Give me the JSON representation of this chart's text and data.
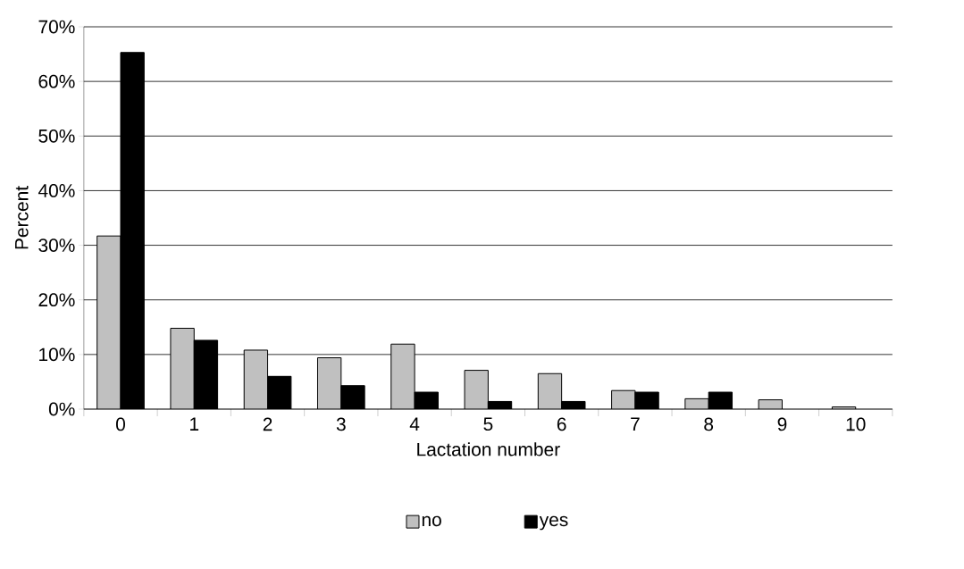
{
  "chart_data": {
    "type": "bar",
    "xlabel": "Lactation number",
    "ylabel": "Percent",
    "categories": [
      "0",
      "1",
      "2",
      "3",
      "4",
      "5",
      "6",
      "7",
      "8",
      "9",
      "10"
    ],
    "series": [
      {
        "name": "no",
        "color": "#c0c0c0",
        "values": [
          31.7,
          14.8,
          10.8,
          9.4,
          11.9,
          7.1,
          6.5,
          3.4,
          1.9,
          1.7,
          0.4
        ]
      },
      {
        "name": "yes",
        "color": "#000000",
        "values": [
          65.3,
          12.6,
          6.0,
          4.3,
          3.1,
          1.4,
          1.4,
          3.1,
          3.1,
          null,
          null
        ]
      }
    ],
    "ylim": [
      0,
      70
    ],
    "yticks": [
      {
        "value": 0,
        "label": "0%"
      },
      {
        "value": 10,
        "label": "10%"
      },
      {
        "value": 20,
        "label": "20%"
      },
      {
        "value": 30,
        "label": "30%"
      },
      {
        "value": 40,
        "label": "40%"
      },
      {
        "value": 50,
        "label": "50%"
      },
      {
        "value": 60,
        "label": "60%"
      },
      {
        "value": 70,
        "label": "70%"
      }
    ],
    "grid": "y",
    "legend": "bottom"
  }
}
